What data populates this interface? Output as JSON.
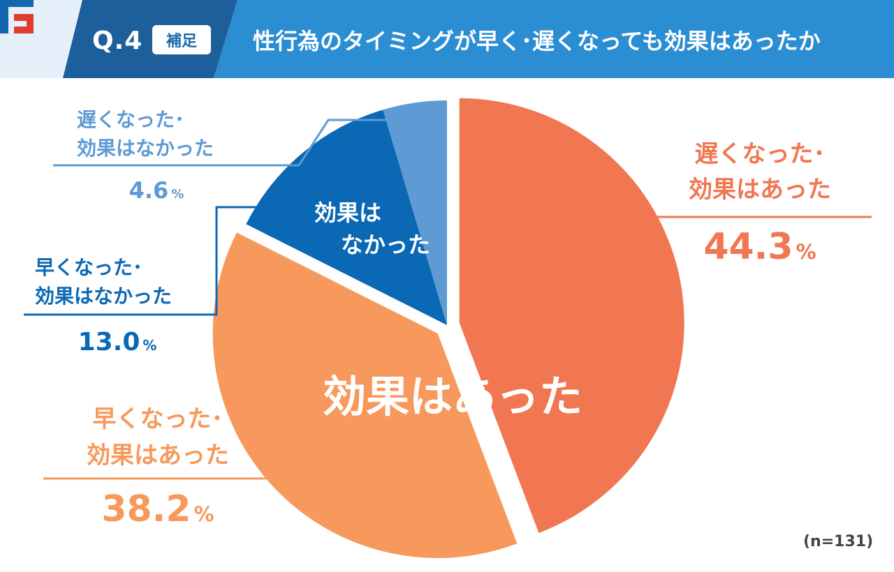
{
  "header": {
    "question_label": "Q.4",
    "badge": "補足",
    "title": "性行為のタイミングが早く･遅くなっても効果はあったか",
    "logo_icon": "brand-logo-icon"
  },
  "chart_data": {
    "type": "pie",
    "title": "性行為のタイミングが早く･遅くなっても効果はあったか",
    "slices": [
      {
        "label_lines": [
          "遅くなった･",
          "効果はあった"
        ],
        "value": 44.3,
        "pct_text": "44.3",
        "color": "#f07751"
      },
      {
        "label_lines": [
          "早くなった･",
          "効果はあった"
        ],
        "value": 38.2,
        "pct_text": "38.2",
        "color": "#f7995c"
      },
      {
        "label_lines": [
          "早くなった･",
          "効果はなかった"
        ],
        "value": 13.0,
        "pct_text": "13.0",
        "color": "#0a68b4"
      },
      {
        "label_lines": [
          "遅くなった･",
          "効果はなかった"
        ],
        "value": 4.6,
        "pct_text": "4.6",
        "color": "#5e9ad4"
      }
    ],
    "group_labels": {
      "effective": "効果はあった",
      "not_effective_lines": [
        "効果は",
        "なかった"
      ]
    },
    "percent_unit": "%",
    "sample_note": "(n=131)"
  },
  "colors": {
    "header_dark": "#1d5f9a",
    "header_light": "#2b8ed2",
    "header_pale": "#e6f0fa",
    "logo_blue": "#1565b0",
    "logo_red": "#e03c31"
  }
}
